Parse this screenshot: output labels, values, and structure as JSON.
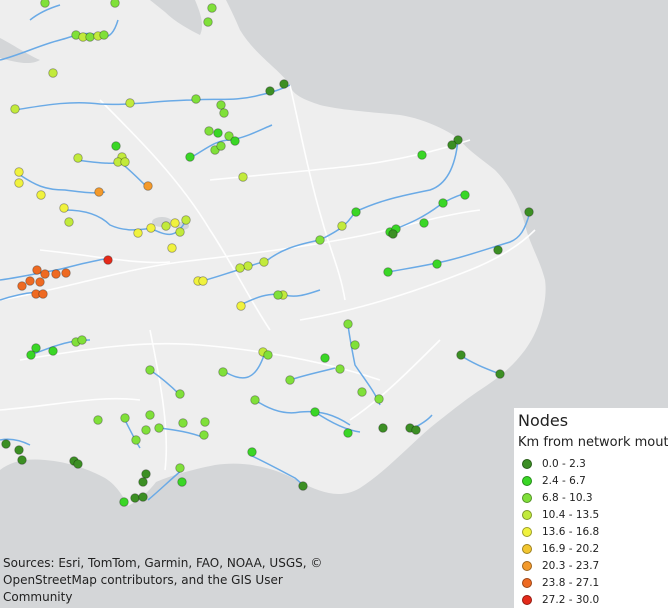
{
  "map": {
    "colors": {
      "sea": "#d4d6d8",
      "land": "#eeeeee",
      "road": "#ffffff",
      "river": "#6aaae6"
    },
    "attribution": "Sources: Esri, TomTom, Garmin, FAO, NOAA, USGS, © OpenStreetMap contributors, and the GIS User Community"
  },
  "legend": {
    "title": "Nodes",
    "subtitle": "Km from network mouth",
    "classes": [
      {
        "label": "0.0 - 2.3",
        "color": "#3c8f24"
      },
      {
        "label": "2.4 - 6.7",
        "color": "#3ad626"
      },
      {
        "label": "6.8 - 10.3",
        "color": "#80e03a"
      },
      {
        "label": "10.4 - 13.5",
        "color": "#c2ea3c"
      },
      {
        "label": "13.6 - 16.8",
        "color": "#f0f23e"
      },
      {
        "label": "16.9 - 20.2",
        "color": "#f2c630"
      },
      {
        "label": "20.3 - 23.7",
        "color": "#f39a2c"
      },
      {
        "label": "23.8 - 27.1",
        "color": "#ee6a22"
      },
      {
        "label": "27.2 - 30.0",
        "color": "#e42a1a"
      }
    ]
  }
}
